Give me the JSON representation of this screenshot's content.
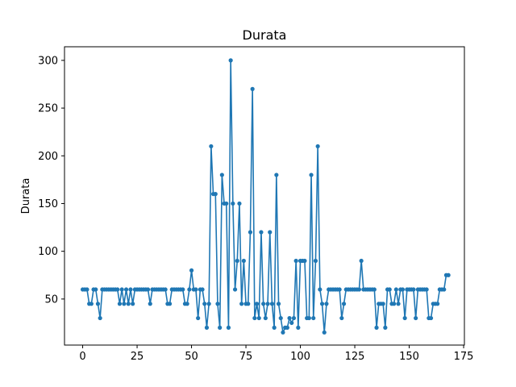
{
  "chart_data": {
    "type": "line",
    "title": "Durata",
    "xlabel": "",
    "ylabel": "Durata",
    "xlim": [
      -8.35,
      175.35
    ],
    "ylim": [
      1.75,
      314.25
    ],
    "x_ticks": [
      0,
      25,
      50,
      75,
      100,
      125,
      150,
      175
    ],
    "y_ticks": [
      50,
      100,
      150,
      200,
      250,
      300
    ],
    "grid": false,
    "legend": "none",
    "color": "#1f77b4",
    "marker": "circle",
    "series": [
      {
        "values": [
          60,
          60,
          60,
          45,
          45,
          60,
          60,
          45,
          30,
          60,
          60,
          60,
          60,
          60,
          60,
          60,
          60,
          45,
          60,
          45,
          60,
          45,
          60,
          45,
          60,
          60,
          60,
          60,
          60,
          60,
          60,
          45,
          60,
          60,
          60,
          60,
          60,
          60,
          60,
          45,
          45,
          60,
          60,
          60,
          60,
          60,
          60,
          45,
          45,
          60,
          80,
          60,
          60,
          30,
          60,
          60,
          45,
          20,
          45,
          210,
          160,
          160,
          45,
          20,
          180,
          150,
          150,
          20,
          300,
          150,
          60,
          90,
          150,
          45,
          90,
          45,
          45,
          120,
          270,
          30,
          45,
          30,
          120,
          45,
          30,
          45,
          120,
          45,
          20,
          180,
          45,
          30,
          15,
          20,
          20,
          30,
          25,
          30,
          90,
          20,
          90,
          90,
          90,
          30,
          30,
          180,
          30,
          90,
          210,
          60,
          45,
          15,
          45,
          60,
          60,
          60,
          60,
          60,
          60,
          30,
          45,
          60,
          60,
          60,
          60,
          60,
          60,
          60,
          90,
          60,
          60,
          60,
          60,
          60,
          60,
          20,
          45,
          45,
          45,
          20,
          60,
          60,
          45,
          45,
          60,
          45,
          60,
          60,
          30,
          60,
          60,
          60,
          60,
          30,
          60,
          60,
          60,
          60,
          60,
          30,
          30,
          45,
          45,
          45,
          60,
          60,
          60,
          75,
          75
        ]
      }
    ]
  }
}
